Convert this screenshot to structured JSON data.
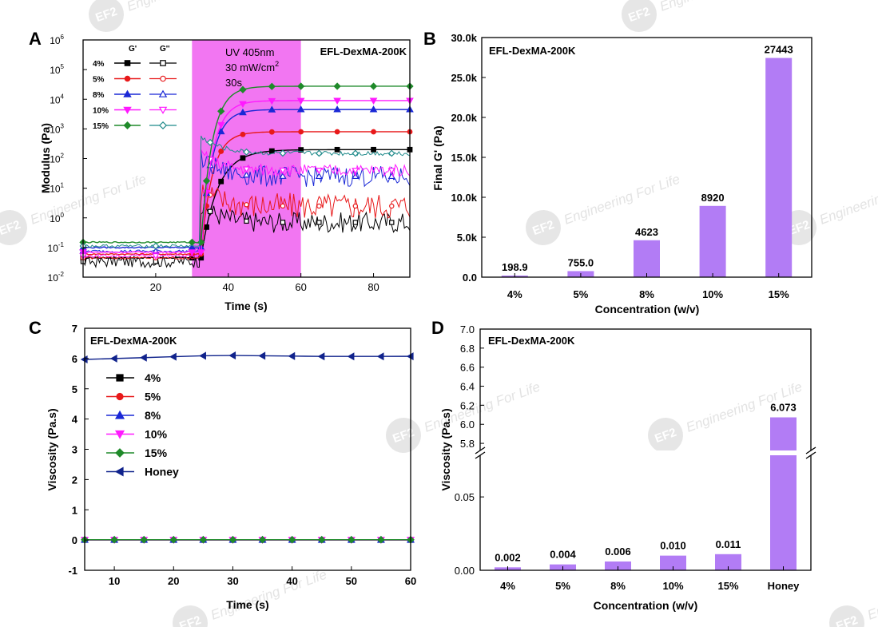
{
  "watermark": {
    "logo": "EF2",
    "text": "Engineering For Life"
  },
  "colors": {
    "c4": "#000000",
    "c5": "#e8191a",
    "c8": "#1a28d6",
    "c10": "#ff19ff",
    "c15": "#1f8a2a",
    "c15b": "#1f8a8a",
    "honey": "#10238c",
    "bar": "#b27cf5",
    "uv": "#f276f2"
  },
  "chart_data": [
    {
      "panel": "A",
      "type": "line",
      "title": "EFL-DexMA-200K",
      "xlabel": "Time (s)",
      "ylabel": "Modulus (Pa)",
      "xlim": [
        0,
        90
      ],
      "ylim": [
        0.01,
        1000000
      ],
      "yscale": "log",
      "xticks": [
        "20",
        "40",
        "60",
        "80"
      ],
      "yticks": [
        {
          "b": "10",
          "e": "-2"
        },
        {
          "b": "10",
          "e": "-1"
        },
        {
          "b": "10",
          "e": "0"
        },
        {
          "b": "10",
          "e": "1"
        },
        {
          "b": "10",
          "e": "2"
        },
        {
          "b": "10",
          "e": "3"
        },
        {
          "b": "10",
          "e": "4"
        },
        {
          "b": "10",
          "e": "5"
        },
        {
          "b": "10",
          "e": "6"
        }
      ],
      "uv_window": [
        30,
        60
      ],
      "uv_text": [
        "UV 405nm",
        "30 mW/cm",
        "30s"
      ],
      "uv_superscript": "2",
      "legend_headers": [
        "G'",
        "G''"
      ],
      "series": [
        {
          "name": "4%",
          "color_key": "c4",
          "pre": 0.045,
          "gp": 200,
          "gpp": 0.7,
          "gpp_noise": 0.35
        },
        {
          "name": "5%",
          "color_key": "c5",
          "pre": 0.06,
          "gp": 800,
          "gpp": 2.5,
          "gpp_noise": 0.45
        },
        {
          "name": "8%",
          "color_key": "c8",
          "pre": 0.1,
          "gp": 4500,
          "gpp": 25,
          "gpp_noise": 0.35
        },
        {
          "name": "10%",
          "color_key": "c10",
          "pre": 0.07,
          "gp": 9000,
          "gpp": 40,
          "gpp_noise": 0.2
        },
        {
          "name": "15%",
          "color_key": "c15",
          "color2_key": "c15b",
          "pre": 0.15,
          "gp": 27443,
          "gpp": 150,
          "gpp_noise": 0.08
        }
      ]
    },
    {
      "panel": "B",
      "type": "bar",
      "title": "EFL-DexMA-200K",
      "xlabel": "Concentration (w/v)",
      "ylabel": "Final G' (Pa)",
      "categories": [
        "4%",
        "5%",
        "8%",
        "10%",
        "15%"
      ],
      "values": [
        198.9,
        755.0,
        4623,
        8920,
        27443
      ],
      "value_labels": [
        "198.9",
        "755.0",
        "4623",
        "8920",
        "27443"
      ],
      "ylim": [
        0,
        30000
      ],
      "yticks": [
        "0.0",
        "5.0k",
        "10.0k",
        "15.0k",
        "20.0k",
        "25.0k",
        "30.0k"
      ]
    },
    {
      "panel": "C",
      "type": "line",
      "title": "EFL-DexMA-200K",
      "xlabel": "Time (s)",
      "ylabel": "Viscosity (Pa.s)",
      "xlim": [
        5,
        60
      ],
      "ylim": [
        -1,
        7
      ],
      "xticks": [
        "10",
        "20",
        "30",
        "40",
        "50",
        "60"
      ],
      "yticks": [
        "-1",
        "0",
        "1",
        "2",
        "3",
        "4",
        "5",
        "6",
        "7"
      ],
      "x": [
        5,
        10,
        15,
        20,
        25,
        30,
        35,
        40,
        45,
        50,
        55,
        60
      ],
      "series": [
        {
          "name": "4%",
          "color_key": "c4",
          "marker": "square",
          "values": [
            0.002,
            0.002,
            0.002,
            0.002,
            0.002,
            0.002,
            0.002,
            0.002,
            0.002,
            0.002,
            0.002,
            0.002
          ]
        },
        {
          "name": "5%",
          "color_key": "c5",
          "marker": "circle",
          "values": [
            0.004,
            0.004,
            0.004,
            0.004,
            0.004,
            0.004,
            0.004,
            0.004,
            0.004,
            0.004,
            0.004,
            0.004
          ]
        },
        {
          "name": "8%",
          "color_key": "c8",
          "marker": "triangle-up",
          "values": [
            0.006,
            0.006,
            0.006,
            0.006,
            0.006,
            0.006,
            0.006,
            0.006,
            0.006,
            0.006,
            0.006,
            0.006
          ]
        },
        {
          "name": "10%",
          "color_key": "c10",
          "marker": "triangle-down",
          "values": [
            0.01,
            0.01,
            0.01,
            0.01,
            0.01,
            0.01,
            0.01,
            0.01,
            0.01,
            0.01,
            0.01,
            0.01
          ]
        },
        {
          "name": "15%",
          "color_key": "c15",
          "marker": "diamond",
          "values": [
            0.011,
            0.011,
            0.011,
            0.011,
            0.011,
            0.011,
            0.011,
            0.011,
            0.011,
            0.011,
            0.011,
            0.011
          ]
        },
        {
          "name": "Honey",
          "color_key": "honey",
          "marker": "triangle-left",
          "values": [
            5.97,
            6.0,
            6.03,
            6.06,
            6.09,
            6.1,
            6.09,
            6.08,
            6.07,
            6.07,
            6.07,
            6.073
          ]
        }
      ]
    },
    {
      "panel": "D",
      "type": "bar",
      "title": "EFL-DexMA-200K",
      "xlabel": "Concentration (w/v)",
      "ylabel": "Viscosity (Pa.s)",
      "categories": [
        "4%",
        "5%",
        "8%",
        "10%",
        "15%",
        "Honey"
      ],
      "values": [
        0.002,
        0.004,
        0.006,
        0.01,
        0.011,
        6.073
      ],
      "value_labels": [
        "0.002",
        "0.004",
        "0.006",
        "0.010",
        "0.011",
        "6.073"
      ],
      "axis_break": {
        "lower": [
          0,
          0.08
        ],
        "upper": [
          5.7,
          7.0
        ]
      },
      "yticks_lower": [
        "0.00",
        "0.05"
      ],
      "yticks_upper": [
        "5.8",
        "6.0",
        "6.2",
        "6.4",
        "6.6",
        "6.8",
        "7.0"
      ]
    }
  ]
}
